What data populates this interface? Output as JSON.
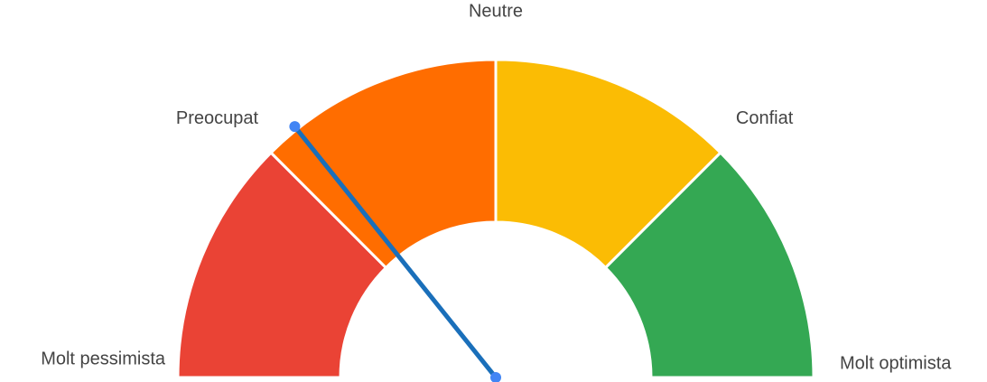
{
  "chart_data": {
    "type": "gauge",
    "ylim": [
      0,
      4
    ],
    "yticks": [
      {
        "value": 0,
        "label": "Molt pessimista"
      },
      {
        "value": 1,
        "label": "Preocupat"
      },
      {
        "value": 2,
        "label": "Neutre"
      },
      {
        "value": 3,
        "label": "Confiat"
      },
      {
        "value": 4,
        "label": "Molt optimista"
      }
    ],
    "band_colors": [
      "#ea4335",
      "#ff6d00",
      "#fbbc04",
      "#34a853"
    ],
    "value": 1.14,
    "needle_color": "#1a6fba",
    "pivot_color": "#4285f4"
  }
}
